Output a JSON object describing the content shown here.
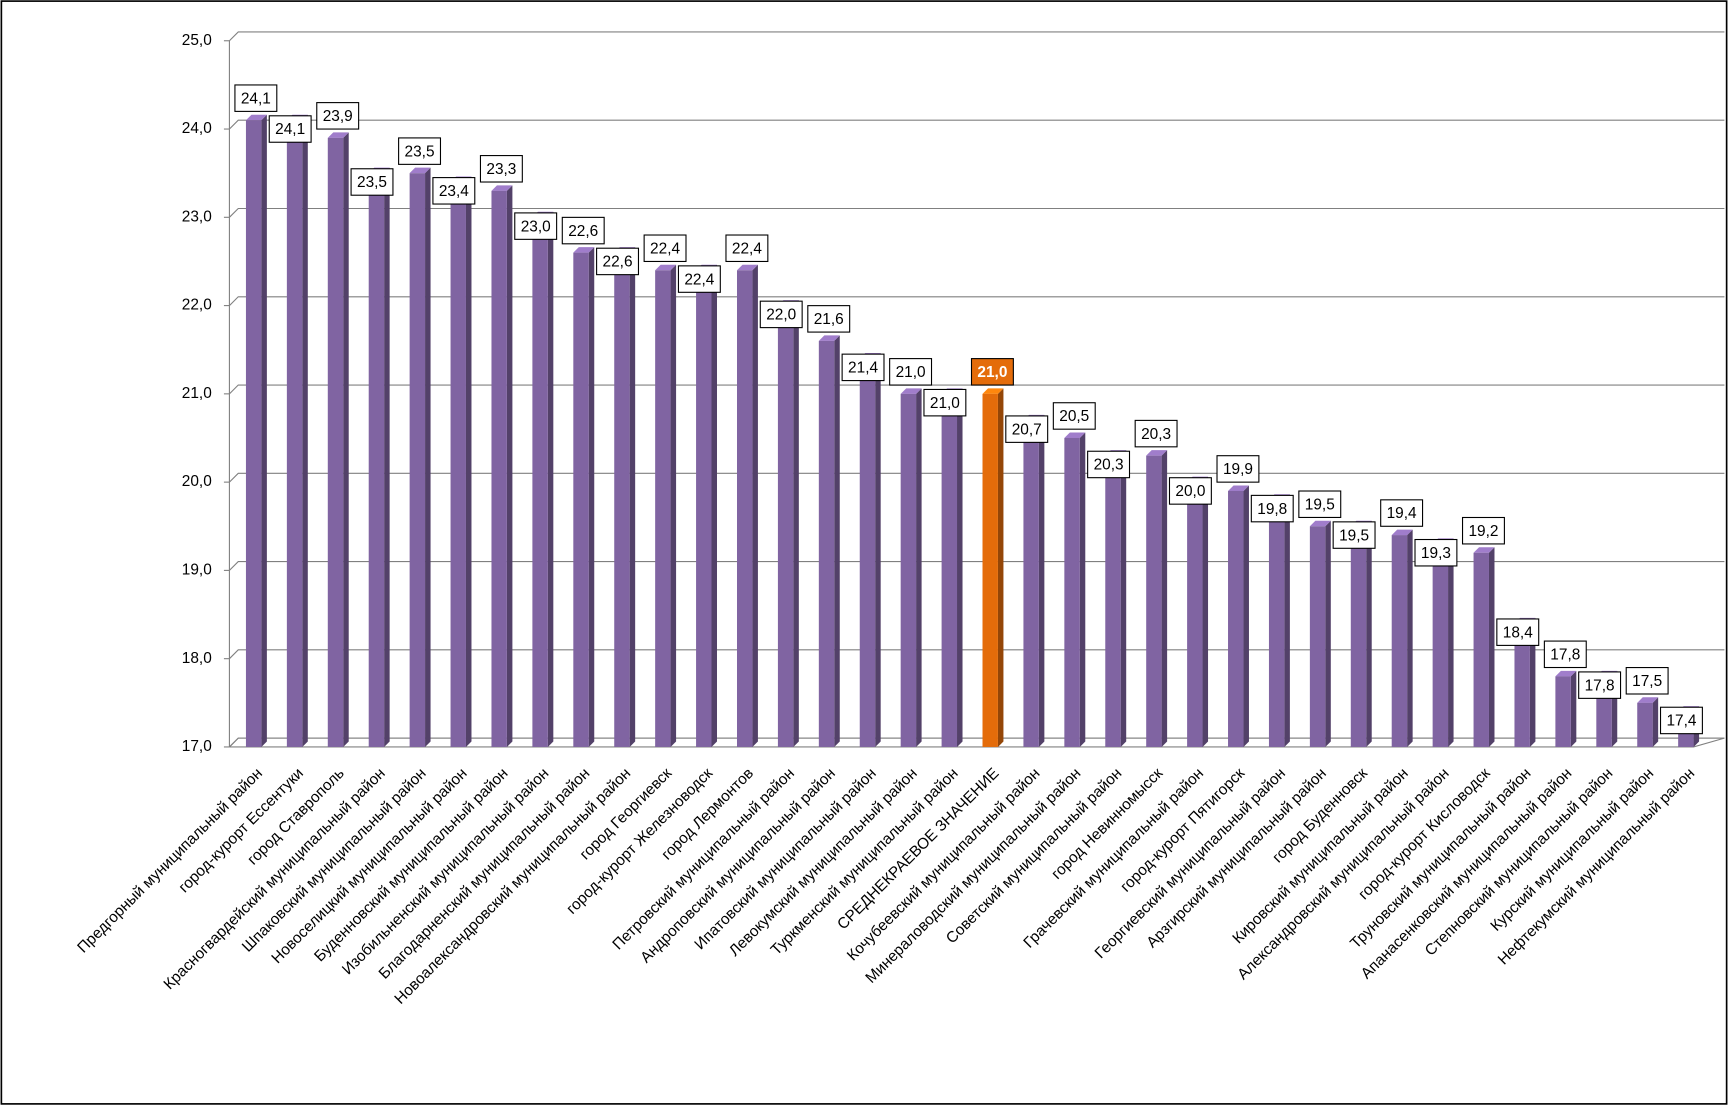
{
  "chart_data": {
    "type": "bar",
    "categories": [
      "Предгорный муниципальный район",
      "город-курорт Ессентуки",
      "город Ставрополь",
      "Красногвардейский муниципальный район",
      "Шпаковский муниципальный район",
      "Новоселицкий муниципальный район",
      "Буденновский муниципальный район",
      "Изобильненский муниципальный район",
      "Благодарненский муниципальный район",
      "Новоалександровский муниципальный район",
      "город Георгиевск",
      "город-курорт Железноводск",
      "город Лермонтов",
      "Петровский муниципальный район",
      "Андроповский муниципальный район",
      "Ипатовский муниципальный район",
      "Левокумский муниципальный район",
      "Туркменский муниципальный район",
      "СРЕДНЕКРАЕВОЕ ЗНАЧЕНИЕ",
      "Кочубеевский муниципальный район",
      "Минераловодский муниципальный район",
      "Советский муниципальный район",
      "город Невинномысск",
      "Грачевский муниципальный район",
      "город-курорт Пятигорск",
      "Георгиевский муниципальный район",
      "Арзгирский муниципальный район",
      "город Буденновск",
      "Кировский муниципальный район",
      "Александровский муниципальный район",
      "город-курорт Кисловодск",
      "Труновский муниципальный район",
      "Апанасенковский муниципальный район",
      "Степновский муниципальный район",
      "Курский муниципальный район",
      "Нефтекумский муниципальный район"
    ],
    "values": [
      24.1,
      24.1,
      23.9,
      23.5,
      23.5,
      23.4,
      23.3,
      23.0,
      22.6,
      22.6,
      22.4,
      22.4,
      22.4,
      22.0,
      21.6,
      21.4,
      21.0,
      21.0,
      21.0,
      20.7,
      20.5,
      20.3,
      20.3,
      20.0,
      19.9,
      19.8,
      19.5,
      19.5,
      19.4,
      19.3,
      19.2,
      18.4,
      17.8,
      17.8,
      17.5,
      17.4
    ],
    "value_labels": [
      "24,1",
      "24,1",
      "23,9",
      "23,5",
      "23,5",
      "23,4",
      "23,3",
      "23,0",
      "22,6",
      "22,6",
      "22,4",
      "22,4",
      "22,4",
      "22,0",
      "21,6",
      "21,4",
      "21,0",
      "21,0",
      "21,0",
      "20,7",
      "20,5",
      "20,3",
      "20,3",
      "20,0",
      "19,9",
      "19,8",
      "19,5",
      "19,5",
      "19,4",
      "19,3",
      "19,2",
      "18,4",
      "17,8",
      "17,8",
      "17,5",
      "17,4"
    ],
    "colors": [
      "#8064a2",
      "#8064a2",
      "#8064a2",
      "#8064a2",
      "#8064a2",
      "#8064a2",
      "#8064a2",
      "#8064a2",
      "#8064a2",
      "#8064a2",
      "#8064a2",
      "#8064a2",
      "#8064a2",
      "#8064a2",
      "#8064a2",
      "#8064a2",
      "#8064a2",
      "#8064a2",
      "#e46c0a",
      "#8064a2",
      "#8064a2",
      "#8064a2",
      "#8064a2",
      "#8064a2",
      "#8064a2",
      "#8064a2",
      "#8064a2",
      "#8064a2",
      "#8064a2",
      "#8064a2",
      "#8064a2",
      "#8064a2",
      "#8064a2",
      "#8064a2",
      "#8064a2",
      "#8064a2"
    ],
    "ylim": [
      17,
      25
    ],
    "yticks": [
      {
        "value": 17,
        "label": "17,0"
      },
      {
        "value": 18,
        "label": "18,0"
      },
      {
        "value": 19,
        "label": "19,0"
      },
      {
        "value": 20,
        "label": "20,0"
      },
      {
        "value": 21,
        "label": "21,0"
      },
      {
        "value": 22,
        "label": "22,0"
      },
      {
        "value": 23,
        "label": "23,0"
      },
      {
        "value": 24,
        "label": "24,0"
      },
      {
        "value": 25,
        "label": "25,0"
      }
    ],
    "grid": true
  }
}
